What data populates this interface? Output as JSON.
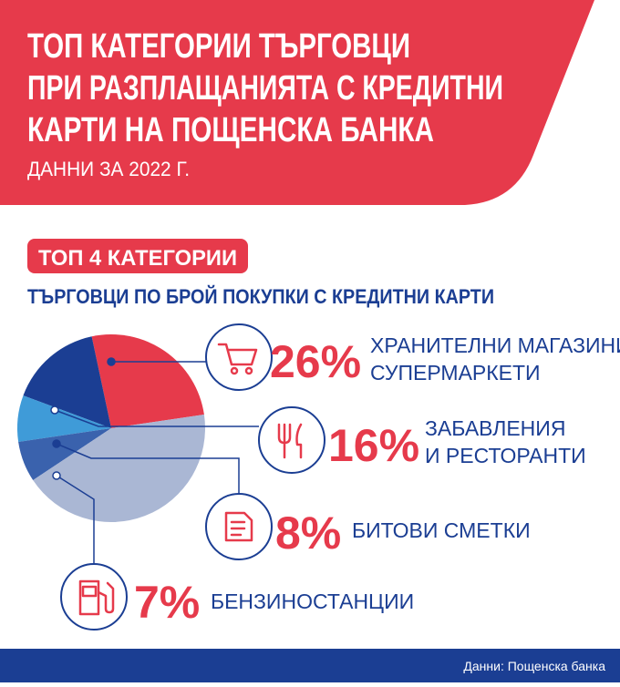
{
  "header": {
    "title_lines": [
      "ТОП КАТЕГОРИИ ТЪРГОВЦИ",
      "ПРИ РАЗПЛАЩАНИЯТА С КРЕДИТНИ",
      "КАРТИ НА ПОЩЕНСКА БАНКА"
    ],
    "subtitle": "ДАННИ ЗА 2022 Г."
  },
  "chart_data": {
    "type": "pie",
    "badge": "ТОП 4 КАТЕГОРИИ",
    "title": "ТЪРГОВЦИ ПО БРОЙ ПОКУПКИ С КРЕДИТНИ КАРТИ",
    "categories": [
      [
        "ХРАНИТЕЛНИ МАГАЗИНИ/",
        "СУПЕРМАРКЕТИ"
      ],
      [
        "ЗАБАВЛЕНИЯ",
        "И РЕСТОРАНТИ"
      ],
      [
        "БИТОВИ СМЕТКИ"
      ],
      [
        "БЕНЗИНОСТАНЦИИ"
      ],
      null
    ],
    "values": [
      26,
      16,
      8,
      7,
      43
    ],
    "value_labels": [
      "26%",
      "16%",
      "8%",
      "7%",
      null
    ],
    "colors": [
      "#e63a4b",
      "#1b3e93",
      "#3f9bd8",
      "#3a62ad",
      "#aab7d4"
    ]
  },
  "footer": {
    "source": "Данни: Пощенска банка"
  }
}
